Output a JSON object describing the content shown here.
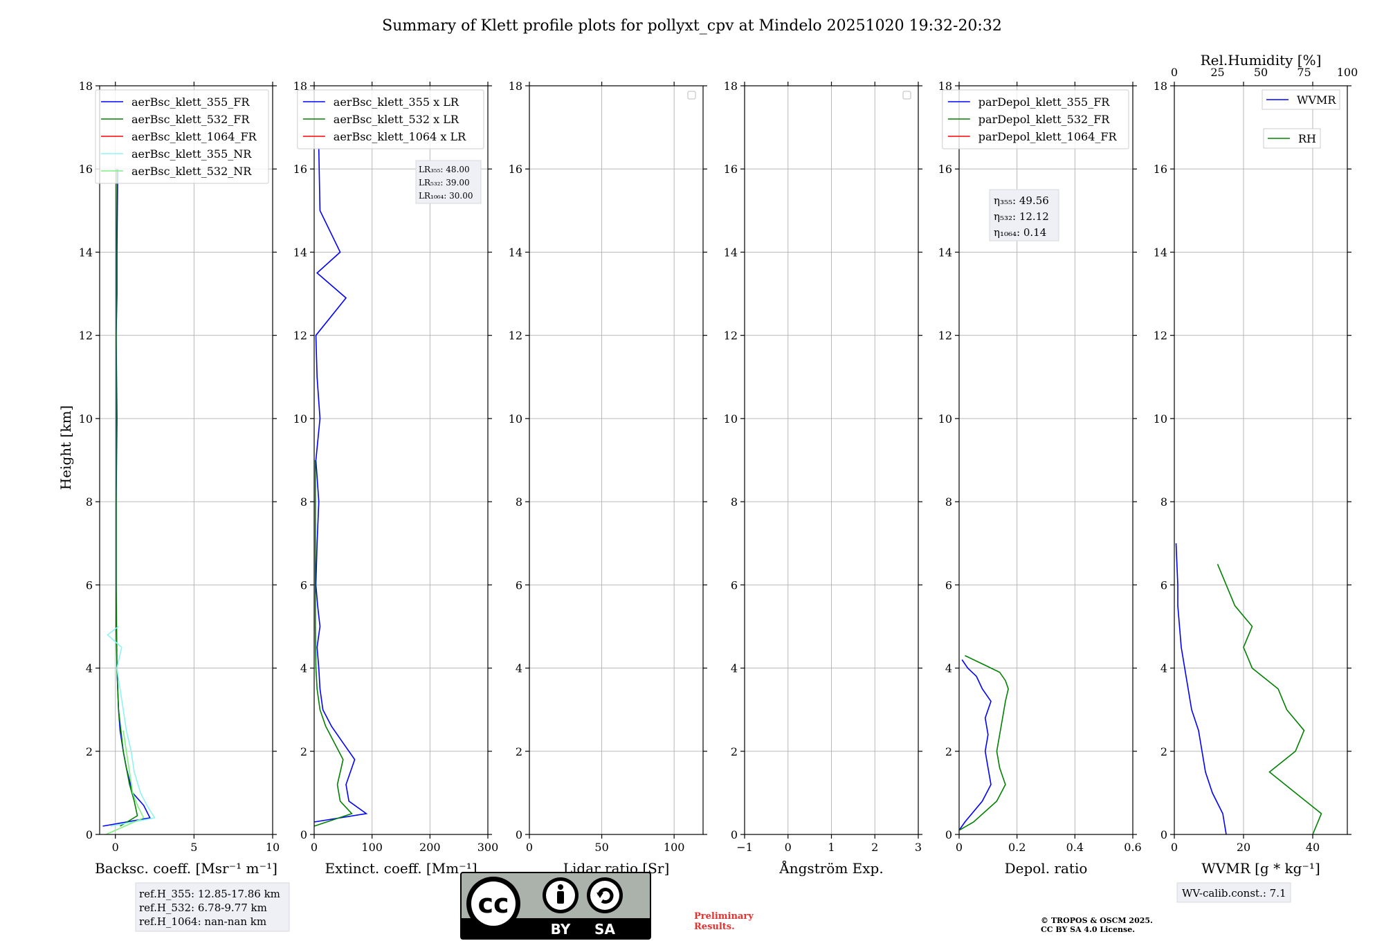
{
  "title": "Summary of Klett profile plots for pollyxt_cpv at Mindelo 20251020 19:32-20:32",
  "colors": {
    "blue": "#0000ff",
    "green": "#008000",
    "red": "#ff0000",
    "cyan": "#8ff3f3",
    "lightgreen": "#7ff07f"
  },
  "chart_data": [
    {
      "type": "line",
      "ylabel": "Height [km]",
      "xlabel": "Backsc. coeff. [Msr⁻¹ m⁻¹]",
      "xlim": [
        -1,
        10
      ],
      "ylim": [
        0,
        18
      ],
      "xticks": [
        0,
        5,
        10
      ],
      "yticks": [
        0,
        2,
        4,
        6,
        8,
        10,
        12,
        14,
        16,
        18
      ],
      "grid": true,
      "legend_position": "upper-right",
      "series": [
        {
          "name": "aerBsc_klett_355_FR",
          "color": "blue",
          "x": [
            -0.8,
            2.2,
            1.8,
            1.1,
            0.9,
            0.7,
            0.5,
            0.3,
            0.2,
            0.15,
            0.1,
            0.05,
            0.05,
            0.05,
            0.1,
            0.05,
            0.1,
            0.1,
            0.15
          ],
          "y": [
            0.2,
            0.4,
            0.7,
            1.0,
            1.3,
            1.6,
            2.0,
            2.5,
            3.0,
            3.5,
            4.0,
            5.0,
            6.0,
            8.0,
            10.0,
            12.0,
            13.0,
            14.0,
            16.0
          ]
        },
        {
          "name": "aerBsc_klett_532_FR",
          "color": "green",
          "x": [
            0.3,
            1.4,
            1.2,
            0.9,
            0.7,
            0.5,
            0.35,
            0.2,
            0.15,
            0.1,
            0.08,
            0.05,
            0.05,
            0.05,
            0.05,
            0.05,
            0.05
          ],
          "y": [
            0.2,
            0.45,
            0.8,
            1.2,
            1.6,
            2.0,
            2.5,
            3.0,
            3.5,
            4.0,
            5.0,
            6.0,
            8.0,
            10.0,
            12.0,
            14.0,
            16.0
          ]
        },
        {
          "name": "aerBsc_klett_1064_FR",
          "color": "red",
          "x": [],
          "y": []
        },
        {
          "name": "aerBsc_klett_355_NR",
          "color": "cyan",
          "x": [
            -0.3,
            2.5,
            2.0,
            1.6,
            1.2,
            1.0,
            0.7,
            0.5,
            0.3,
            0.1,
            0.4,
            -0.5,
            0.2
          ],
          "y": [
            0.2,
            0.4,
            0.7,
            1.0,
            1.5,
            2.0,
            2.5,
            3.0,
            3.5,
            4.0,
            4.5,
            4.8,
            5.0
          ]
        },
        {
          "name": "aerBsc_klett_532_NR",
          "color": "lightgreen",
          "x": [
            -0.6,
            1.8,
            1.4,
            1.1,
            0.9,
            0.7,
            0.5
          ],
          "y": [
            0.0,
            0.4,
            0.7,
            1.0,
            1.5,
            2.0,
            2.5
          ]
        }
      ]
    },
    {
      "type": "line",
      "xlabel": "Extinct. coeff. [Mm⁻¹]",
      "xlim": [
        0,
        300
      ],
      "ylim": [
        0,
        18
      ],
      "xticks": [
        0,
        100,
        200,
        300
      ],
      "yticks": [
        0,
        2,
        4,
        6,
        8,
        10,
        12,
        14,
        16,
        18
      ],
      "grid": true,
      "legend_position": "upper-right",
      "series": [
        {
          "name": "aerBsc_klett_355 x LR",
          "color": "blue",
          "x": [
            0,
            90,
            60,
            55,
            70,
            50,
            30,
            15,
            10,
            8,
            5,
            10,
            6,
            3,
            5,
            8,
            3,
            10,
            5,
            3,
            55,
            5,
            45,
            10,
            8
          ],
          "y": [
            0.3,
            0.5,
            0.8,
            1.2,
            1.8,
            2.2,
            2.6,
            3.0,
            3.5,
            4.0,
            4.5,
            5.0,
            5.5,
            6.0,
            7.0,
            8.0,
            9.0,
            10.0,
            11.0,
            12.0,
            12.9,
            13.5,
            14.0,
            15.0,
            16.5
          ]
        },
        {
          "name": "aerBsc_klett_532 x LR",
          "color": "green",
          "x": [
            0,
            65,
            45,
            40,
            50,
            35,
            20,
            10,
            5,
            3,
            2,
            2,
            2
          ],
          "y": [
            0.2,
            0.5,
            0.8,
            1.2,
            1.8,
            2.2,
            2.6,
            3.0,
            3.5,
            4.0,
            5.0,
            7.0,
            9.0
          ]
        },
        {
          "name": "aerBsc_klett_1064 x LR",
          "color": "red",
          "x": [],
          "y": []
        }
      ],
      "annotation": [
        "LR₃₅₅: 48.00",
        "LR₅₃₂: 39.00",
        "LR₁₀₆₄: 30.00"
      ]
    },
    {
      "type": "line",
      "xlabel": "Lidar ratio [Sr]",
      "xlim": [
        0,
        120
      ],
      "ylim": [
        0,
        18
      ],
      "xticks": [
        0,
        50,
        100
      ],
      "yticks": [
        0,
        2,
        4,
        6,
        8,
        10,
        12,
        14,
        16,
        18
      ],
      "grid": true,
      "legend_position": "upper-right",
      "series": []
    },
    {
      "type": "line",
      "xlabel": "Ångström Exp.",
      "xlim": [
        -1,
        3
      ],
      "ylim": [
        0,
        18
      ],
      "xticks": [
        -1,
        0,
        1,
        2,
        3
      ],
      "yticks": [
        0,
        2,
        4,
        6,
        8,
        10,
        12,
        14,
        16,
        18
      ],
      "grid": true,
      "legend_position": "upper-right",
      "series": []
    },
    {
      "type": "line",
      "xlabel": "Depol. ratio",
      "xlim": [
        0,
        0.6
      ],
      "ylim": [
        0,
        18
      ],
      "xticks": [
        0.0,
        0.2,
        0.4,
        0.6
      ],
      "yticks": [
        0,
        2,
        4,
        6,
        8,
        10,
        12,
        14,
        16,
        18
      ],
      "grid": true,
      "legend_position": "upper-right",
      "series": [
        {
          "name": "parDepol_klett_355_FR",
          "color": "blue",
          "x": [
            0.0,
            0.02,
            0.08,
            0.11,
            0.1,
            0.09,
            0.1,
            0.09,
            0.11,
            0.08,
            0.06,
            0.03,
            0.01
          ],
          "y": [
            0.1,
            0.3,
            0.8,
            1.2,
            1.6,
            2.0,
            2.4,
            2.8,
            3.2,
            3.5,
            3.8,
            4.0,
            4.2
          ]
        },
        {
          "name": "parDepol_klett_532_FR",
          "color": "green",
          "x": [
            0.0,
            0.05,
            0.13,
            0.16,
            0.14,
            0.13,
            0.14,
            0.15,
            0.16,
            0.17,
            0.16,
            0.14,
            0.08,
            0.02
          ],
          "y": [
            0.1,
            0.3,
            0.8,
            1.2,
            1.6,
            2.0,
            2.4,
            2.8,
            3.2,
            3.5,
            3.7,
            3.9,
            4.1,
            4.3
          ]
        },
        {
          "name": "parDepol_klett_1064_FR",
          "color": "red",
          "x": [],
          "y": []
        }
      ],
      "annotation": [
        "η₃₅₅: 49.56",
        "η₅₃₂: 12.12",
        "η₁₀₆₄: 0.14"
      ]
    },
    {
      "type": "line",
      "xlabel": "WVMR [g * kg⁻¹]",
      "x2label": "Rel.Humidity [%]",
      "xlim": [
        0,
        50
      ],
      "x2lim": [
        0,
        100
      ],
      "ylim": [
        0,
        18
      ],
      "xticks": [
        0,
        20,
        40
      ],
      "x2ticks": [
        0,
        25,
        50,
        75,
        100
      ],
      "yticks": [
        0,
        2,
        4,
        6,
        8,
        10,
        12,
        14,
        16,
        18
      ],
      "grid": true,
      "legend_position": "upper-right",
      "series": [
        {
          "name": "WVMR",
          "color": "blue",
          "x": [
            15,
            14,
            11,
            9,
            8,
            7,
            5,
            4,
            3,
            2,
            1.5,
            1,
            1,
            0.5
          ],
          "y": [
            0.0,
            0.5,
            1.0,
            1.5,
            2.0,
            2.5,
            3.0,
            3.5,
            4.0,
            4.5,
            5.0,
            5.5,
            6.0,
            7.0
          ]
        },
        {
          "name": "RH",
          "color": "green",
          "axis": "x2",
          "x": [
            80,
            85,
            70,
            55,
            70,
            75,
            65,
            60,
            45,
            40,
            45,
            35,
            30,
            25
          ],
          "y": [
            0.0,
            0.5,
            1.0,
            1.5,
            2.0,
            2.5,
            3.0,
            3.5,
            4.0,
            4.5,
            5.0,
            5.5,
            6.0,
            6.5
          ]
        }
      ],
      "annotation": [
        "WV-calib.const.: 7.1"
      ]
    }
  ],
  "refbox": [
    "ref.H_355: 12.85-17.86 km",
    "ref.H_532: 6.78-9.77 km",
    "ref.H_1064: nan-nan km"
  ],
  "cc_labels": {
    "by": "BY",
    "sa": "SA",
    "cc": "cc"
  },
  "preliminary": [
    "Preliminary",
    "Results."
  ],
  "copyright": [
    "© TROPOS & OSCM 2025.",
    "CC BY SA 4.0 License."
  ]
}
